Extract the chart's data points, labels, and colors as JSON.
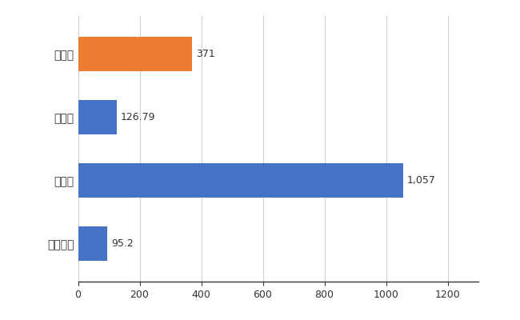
{
  "categories": [
    "一宮市",
    "県平均",
    "県最大",
    "全国平均"
  ],
  "values": [
    371,
    126.79,
    1057,
    95.2
  ],
  "colors": [
    "#ed7d31",
    "#4472c4",
    "#4472c4",
    "#4472c4"
  ],
  "value_labels": [
    "371",
    "126.79",
    "1,057",
    "95.2"
  ],
  "xlim": [
    0,
    1300
  ],
  "xticks": [
    0,
    200,
    400,
    600,
    800,
    1000,
    1200
  ],
  "background_color": "#ffffff",
  "grid_color": "#d0d0d0",
  "bar_height": 0.55
}
